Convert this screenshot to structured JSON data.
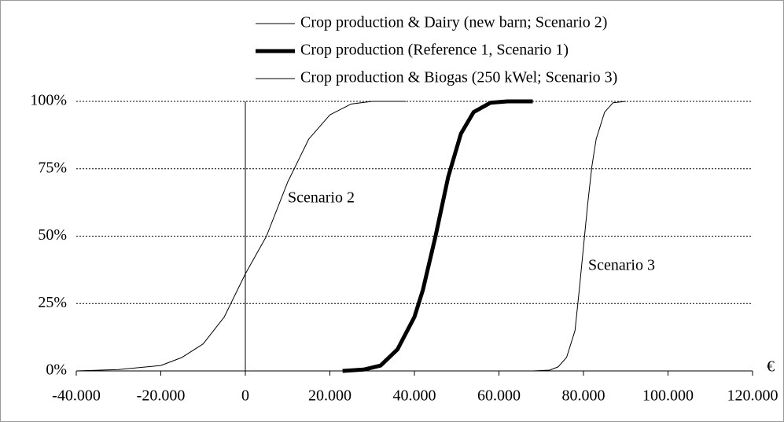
{
  "chart_data": {
    "type": "line",
    "xlabel": "€",
    "annotations": [
      "Scenario 2",
      "Scenario 3"
    ],
    "xlim": [
      -40000,
      120000
    ],
    "ylim": [
      0,
      100
    ],
    "xticks": [
      {
        "value": -40000,
        "label": "-40.000"
      },
      {
        "value": -20000,
        "label": "-20.000"
      },
      0,
      {
        "value": 20000,
        "label": "20.000"
      },
      {
        "value": 40000,
        "label": "40.000"
      },
      {
        "value": 60000,
        "label": "60.000"
      },
      {
        "value": 80000,
        "label": "80.000"
      },
      {
        "value": 100000,
        "label": "100.000"
      },
      {
        "value": 120000,
        "label": "120.000"
      }
    ],
    "yticks": [
      {
        "value": 0,
        "label": "0%"
      },
      {
        "value": 25,
        "label": "25%"
      },
      {
        "value": 50,
        "label": "50%"
      },
      {
        "value": 75,
        "label": "75%"
      },
      {
        "value": 100,
        "label": "100%"
      }
    ],
    "grid": true,
    "series": [
      {
        "name": "Crop production & Dairy (new barn; Scenario 2)",
        "color": "#000000",
        "width": 1,
        "x": [
          -40000,
          -30000,
          -20000,
          -15000,
          -10000,
          -5000,
          0,
          5000,
          10000,
          15000,
          20000,
          25000,
          30000,
          38000
        ],
        "values": [
          0,
          0.5,
          2,
          5,
          10,
          20,
          36,
          50,
          70,
          86,
          95,
          99,
          100,
          100
        ]
      },
      {
        "name": "Crop production (Reference 1, Scenario 1)",
        "color": "#000000",
        "width": 5,
        "x": [
          23000,
          28000,
          32000,
          36000,
          40000,
          42000,
          45000,
          48000,
          51000,
          54000,
          58000,
          62000,
          68000
        ],
        "values": [
          0,
          0.5,
          2,
          8,
          20,
          30,
          50,
          72,
          88,
          96,
          99.5,
          100,
          100
        ]
      },
      {
        "name": "Crop production & Biogas (250 kWel; Scenario 3)",
        "color": "#000000",
        "width": 1,
        "x": [
          68000,
          72000,
          74000,
          76000,
          78000,
          79000,
          80000,
          81000,
          82000,
          83000,
          85000,
          87000,
          90000
        ],
        "values": [
          0,
          0.3,
          1.5,
          5,
          15,
          30,
          46,
          62,
          76,
          86,
          96,
          99.5,
          100
        ]
      }
    ]
  }
}
